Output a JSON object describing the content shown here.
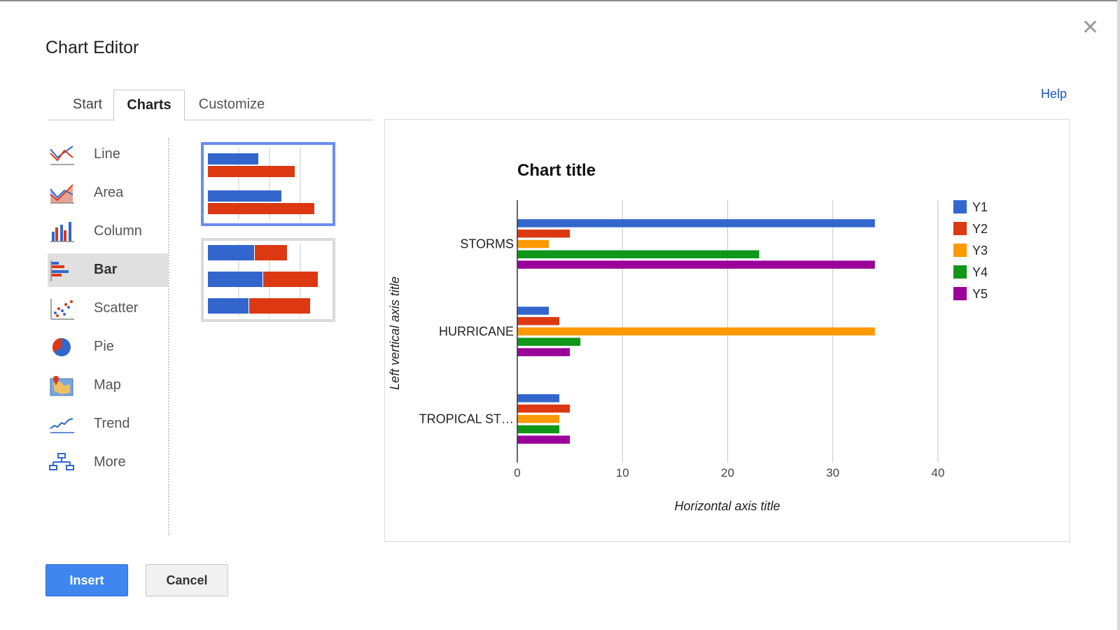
{
  "dialog": {
    "title": "Chart Editor",
    "help_label": "Help",
    "close_symbol": "✕"
  },
  "tabs": [
    {
      "label": "Start",
      "active": false
    },
    {
      "label": "Charts",
      "active": true
    },
    {
      "label": "Customize",
      "active": false
    }
  ],
  "chart_types": [
    {
      "label": "Line",
      "icon": "line-chart-icon",
      "selected": false
    },
    {
      "label": "Area",
      "icon": "area-chart-icon",
      "selected": false
    },
    {
      "label": "Column",
      "icon": "column-chart-icon",
      "selected": false
    },
    {
      "label": "Bar",
      "icon": "bar-chart-icon",
      "selected": true
    },
    {
      "label": "Scatter",
      "icon": "scatter-chart-icon",
      "selected": false
    },
    {
      "label": "Pie",
      "icon": "pie-chart-icon",
      "selected": false
    },
    {
      "label": "Map",
      "icon": "map-chart-icon",
      "selected": false
    },
    {
      "label": "Trend",
      "icon": "trend-chart-icon",
      "selected": false
    },
    {
      "label": "More",
      "icon": "more-charts-icon",
      "selected": false
    }
  ],
  "thumbnails": [
    {
      "name": "grouped-bar",
      "selected": true
    },
    {
      "name": "stacked-bar",
      "selected": false
    }
  ],
  "buttons": {
    "insert": "Insert",
    "cancel": "Cancel"
  },
  "colors": {
    "Y1": "#3366cc",
    "Y2": "#dc3912",
    "Y3": "#ff9900",
    "Y4": "#109618",
    "Y5": "#990099",
    "accent": "#3f86f0"
  },
  "chart_data": {
    "type": "bar",
    "orientation": "horizontal",
    "title": "Chart title",
    "xlabel": "Horizontal axis title",
    "ylabel": "Left vertical axis title",
    "categories": [
      "STORMS",
      "HURRICANE",
      "TROPICAL ST…"
    ],
    "series": [
      {
        "name": "Y1",
        "values": [
          34,
          3,
          4
        ]
      },
      {
        "name": "Y2",
        "values": [
          5,
          4,
          5
        ]
      },
      {
        "name": "Y3",
        "values": [
          3,
          34,
          4
        ]
      },
      {
        "name": "Y4",
        "values": [
          23,
          6,
          4
        ]
      },
      {
        "name": "Y5",
        "values": [
          34,
          5,
          5
        ]
      }
    ],
    "xlim": [
      0,
      40
    ],
    "xticks": [
      0,
      10,
      20,
      30,
      40
    ],
    "grid": true,
    "legend_position": "right"
  }
}
